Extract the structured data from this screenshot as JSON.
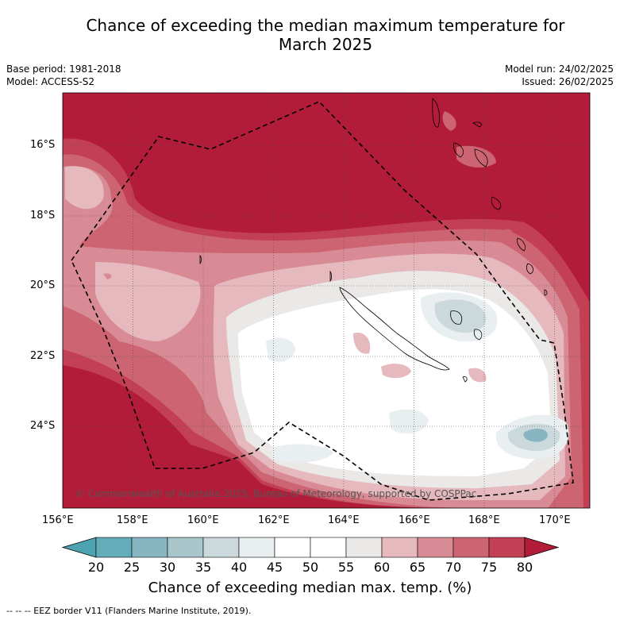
{
  "header": {
    "title_line1": "Chance of exceeding the median maximum temperature for",
    "title_line2": "March 2025",
    "base_period": "Base period: 1981-2018",
    "model": "Model: ACCESS-S2",
    "model_run": "Model run: 24/02/2025",
    "issued": "Issued: 26/02/2025"
  },
  "map": {
    "lon_ticks": [
      "156°E",
      "158°E",
      "160°E",
      "162°E",
      "164°E",
      "166°E",
      "168°E",
      "170°E"
    ],
    "lat_ticks": [
      "16°S",
      "18°S",
      "20°S",
      "22°S",
      "24°S"
    ],
    "watermark": "© Commonwealth of Australia 2025, Bureau of Meteorology, supported by COSPPac",
    "colors": {
      "p80": "#b31c38",
      "p75": "#c23f54",
      "p70": "#cd6472",
      "p65": "#d98b95",
      "p60": "#e5b9be",
      "p55": "#ebe9e8",
      "p50": "#ffffff",
      "p45": "#ffffff",
      "p40": "#e9eff1",
      "p35": "#cbd9dc",
      "p30": "#a9c6cb",
      "p25": "#87b5c1"
    }
  },
  "colorbar": {
    "ticks": [
      "20",
      "25",
      "30",
      "35",
      "40",
      "45",
      "50",
      "55",
      "60",
      "65",
      "70",
      "75",
      "80"
    ],
    "colors": [
      "#63acba",
      "#87b5c1",
      "#a9c6cb",
      "#cbd9dc",
      "#e9eff1",
      "#ffffff",
      "#ffffff",
      "#ebe9e8",
      "#e5b9be",
      "#d98b95",
      "#cd6472",
      "#c23f54"
    ],
    "low_color": "#4ea3b1",
    "high_color": "#b31c38",
    "label": "Chance of exceeding median max. temp. (%)"
  },
  "footer": {
    "legend": "--  --  -- EEZ border V11 (Flanders Marine Institute, 2019)."
  }
}
